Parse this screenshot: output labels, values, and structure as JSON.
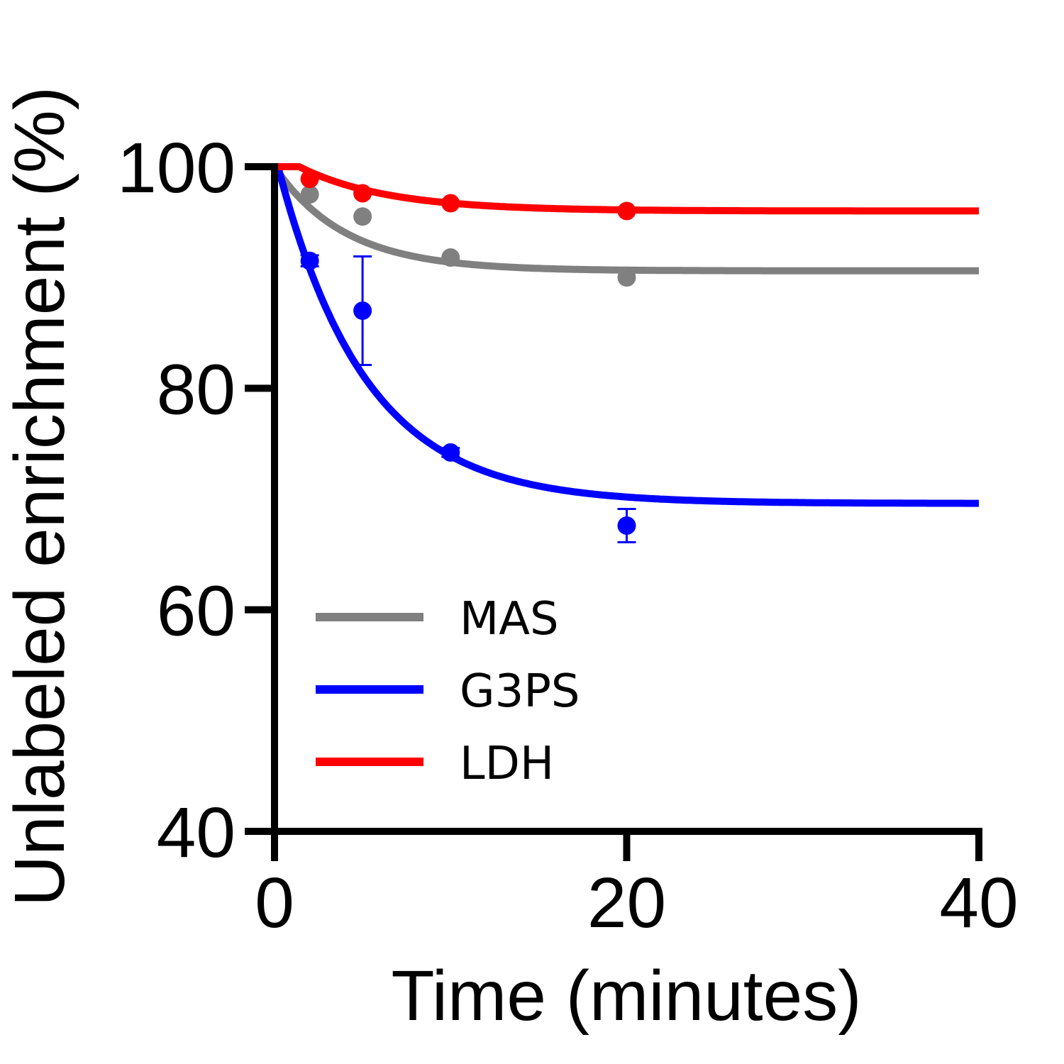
{
  "chart_data": {
    "type": "line",
    "title": "",
    "xlabel": "Time (minutes)",
    "ylabel": "Unlabeled enrichment (%)",
    "xlim": [
      0,
      40
    ],
    "ylim": [
      40,
      100
    ],
    "xticks": [
      "0",
      "20",
      "40"
    ],
    "yticks": [
      "40",
      "60",
      "80",
      "100"
    ],
    "grid": false,
    "legend_position": "bottom-left",
    "series": [
      {
        "name": "MAS",
        "color": "#808080",
        "points": [
          {
            "x": 2,
            "y": 97.5,
            "err": 0
          },
          {
            "x": 5,
            "y": 95.5,
            "err": 0
          },
          {
            "x": 10,
            "y": 91.8,
            "err": 0
          },
          {
            "x": 20,
            "y": 90.0,
            "err": 0
          }
        ],
        "fit": {
          "model": "exponential decay",
          "start": 100,
          "plateau": 90.6,
          "rate": 0.25,
          "delay": 0
        }
      },
      {
        "name": "G3PS",
        "color": "#0000ff",
        "points": [
          {
            "x": 2,
            "y": 91.5,
            "err": 0.5
          },
          {
            "x": 5,
            "y": 87.0,
            "err": 4.9
          },
          {
            "x": 10,
            "y": 74.2,
            "err": 0.4
          },
          {
            "x": 20,
            "y": 67.6,
            "err": 1.5
          }
        ],
        "fit": {
          "model": "exponential decay",
          "start": 100,
          "plateau": 69.6,
          "rate": 0.2,
          "delay": 0.2
        }
      },
      {
        "name": "LDH",
        "color": "#ff0000",
        "points": [
          {
            "x": 2,
            "y": 98.9,
            "err": 0
          },
          {
            "x": 5,
            "y": 97.6,
            "err": 0
          },
          {
            "x": 10,
            "y": 96.7,
            "err": 0
          },
          {
            "x": 20,
            "y": 96.0,
            "err": 0
          }
        ],
        "fit": {
          "model": "exponential decay",
          "start": 100,
          "plateau": 96.0,
          "rate": 0.2,
          "delay": 1.4
        }
      }
    ]
  }
}
